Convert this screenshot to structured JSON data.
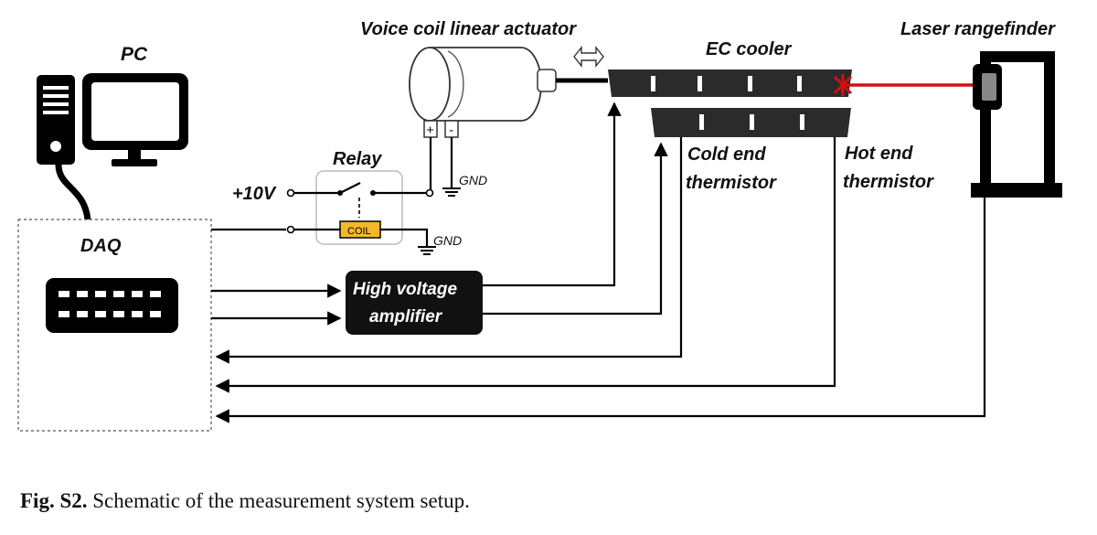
{
  "labels": {
    "pc": "PC",
    "daq": "DAQ",
    "voice_coil": "Voice coil linear actuator",
    "ec_cooler": "EC cooler",
    "laser": "Laser rangefinder",
    "relay": "Relay",
    "plus10v": "+10V",
    "gnd": "GND",
    "coil": "COIL",
    "plus": "+",
    "minus": "-",
    "hva_line1": "High voltage",
    "hva_line2": "amplifier",
    "cold_line1": "Cold end",
    "cold_line2": "thermistor",
    "hot_line1": "Hot end",
    "hot_line2": "thermistor"
  },
  "caption": {
    "prefix": "Fig. S2.",
    "text": " Schematic of the measurement system setup."
  },
  "colors": {
    "laser_beam": "#d01010",
    "coil_fill": "#f5b82a",
    "device_dark": "#2b2b2b"
  }
}
